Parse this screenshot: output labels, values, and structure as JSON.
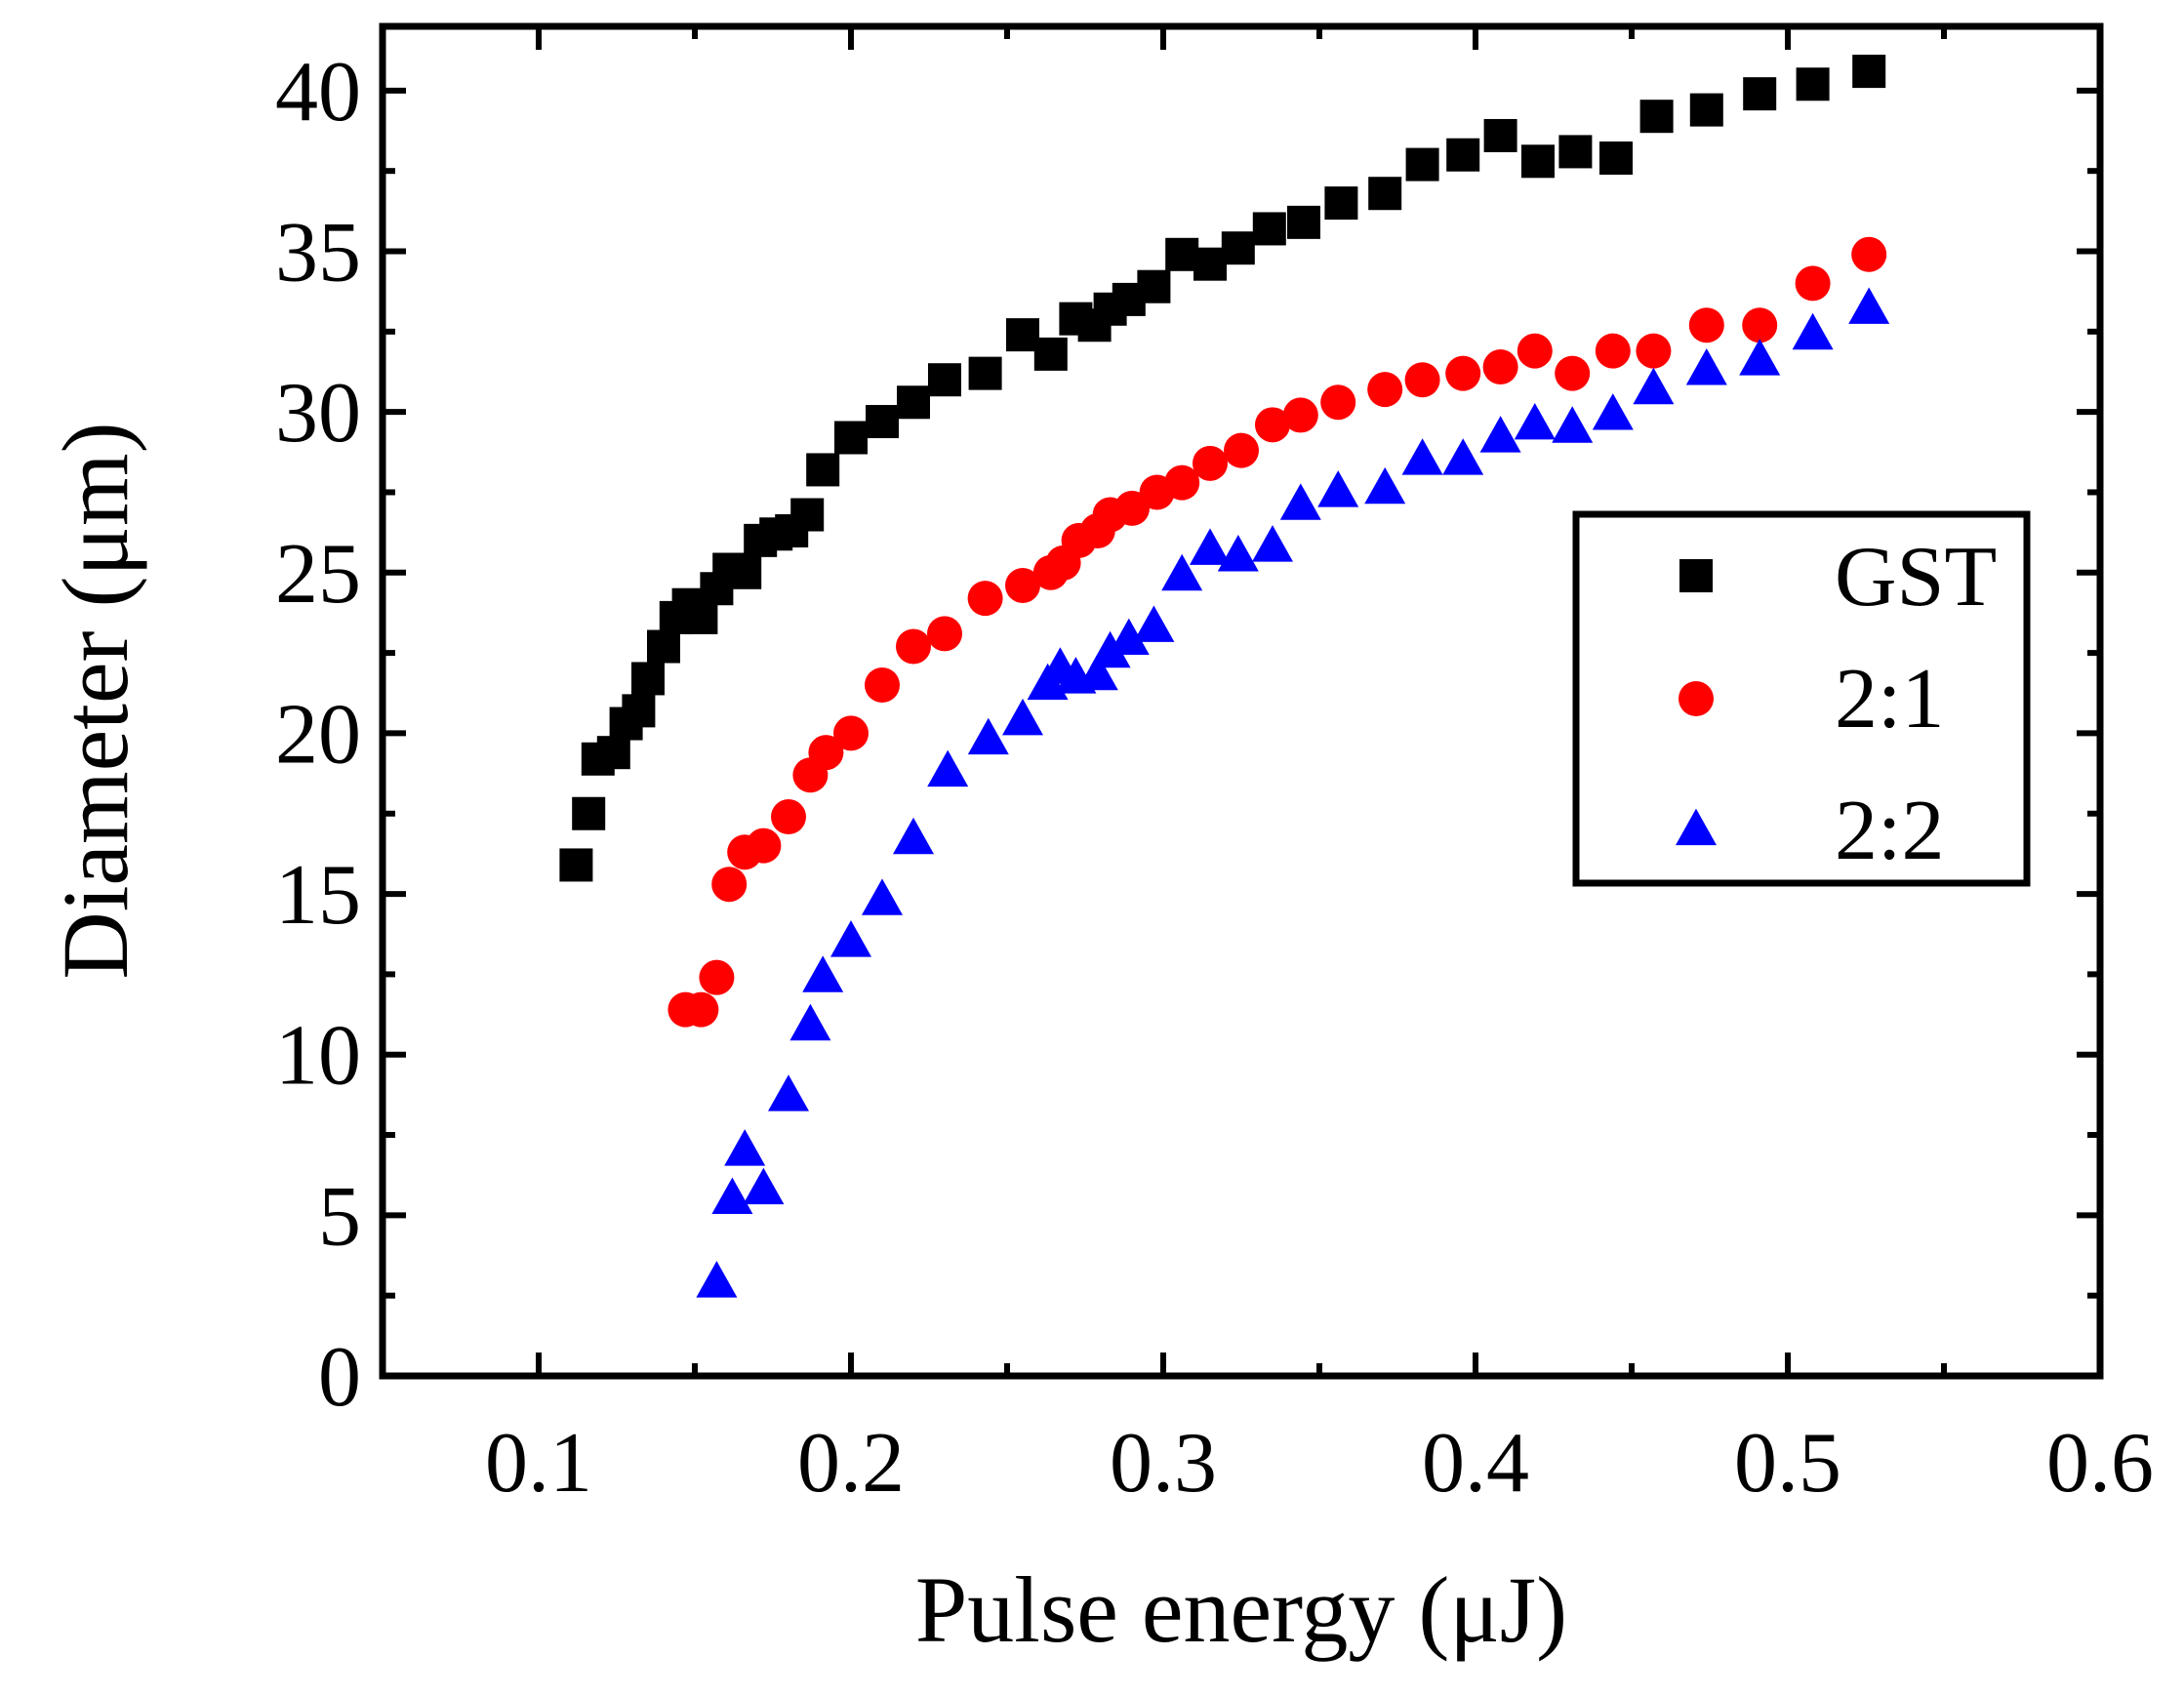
{
  "chart_data": {
    "type": "scatter",
    "xlabel": "Pulse energy (μJ)",
    "ylabel": "Diameter (μm)",
    "xlim": [
      0.05,
      0.6
    ],
    "ylim": [
      0,
      42
    ],
    "xticks": [
      0.1,
      0.2,
      0.3,
      0.4,
      0.5,
      0.6
    ],
    "xtick_labels": [
      "0.1",
      "0.2",
      "0.3",
      "0.4",
      "0.5",
      "0.6"
    ],
    "yticks": [
      0,
      5,
      10,
      15,
      20,
      25,
      30,
      35,
      40
    ],
    "ytick_labels": [
      "0",
      "5",
      "10",
      "15",
      "20",
      "25",
      "30",
      "35",
      "40"
    ],
    "grid": false,
    "legend_position": "right",
    "series": [
      {
        "name": "GST",
        "marker": "square",
        "color": "#000000",
        "points": [
          [
            0.112,
            15.9
          ],
          [
            0.116,
            17.5
          ],
          [
            0.119,
            19.2
          ],
          [
            0.124,
            19.4
          ],
          [
            0.128,
            20.3
          ],
          [
            0.132,
            20.7
          ],
          [
            0.135,
            21.7
          ],
          [
            0.14,
            22.7
          ],
          [
            0.144,
            23.6
          ],
          [
            0.148,
            24.0
          ],
          [
            0.152,
            23.6
          ],
          [
            0.157,
            24.5
          ],
          [
            0.161,
            25.1
          ],
          [
            0.166,
            25.0
          ],
          [
            0.171,
            26.0
          ],
          [
            0.176,
            26.2
          ],
          [
            0.181,
            26.3
          ],
          [
            0.186,
            26.8
          ],
          [
            0.191,
            28.2
          ],
          [
            0.2,
            29.2
          ],
          [
            0.21,
            29.7
          ],
          [
            0.22,
            30.3
          ],
          [
            0.23,
            31.0
          ],
          [
            0.243,
            31.2
          ],
          [
            0.255,
            32.4
          ],
          [
            0.264,
            31.8
          ],
          [
            0.272,
            32.9
          ],
          [
            0.278,
            32.7
          ],
          [
            0.283,
            33.2
          ],
          [
            0.289,
            33.5
          ],
          [
            0.297,
            33.9
          ],
          [
            0.306,
            34.9
          ],
          [
            0.315,
            34.6
          ],
          [
            0.324,
            35.1
          ],
          [
            0.334,
            35.7
          ],
          [
            0.345,
            35.9
          ],
          [
            0.357,
            36.5
          ],
          [
            0.371,
            36.8
          ],
          [
            0.383,
            37.7
          ],
          [
            0.396,
            38.0
          ],
          [
            0.408,
            38.6
          ],
          [
            0.42,
            37.8
          ],
          [
            0.432,
            38.1
          ],
          [
            0.445,
            37.9
          ],
          [
            0.458,
            39.2
          ],
          [
            0.474,
            39.4
          ],
          [
            0.491,
            39.9
          ],
          [
            0.508,
            40.2
          ],
          [
            0.526,
            40.6
          ]
        ]
      },
      {
        "name": "2:1",
        "marker": "circle",
        "color": "#ff0000",
        "points": [
          [
            0.147,
            11.4
          ],
          [
            0.152,
            11.4
          ],
          [
            0.157,
            12.4
          ],
          [
            0.161,
            15.3
          ],
          [
            0.166,
            16.3
          ],
          [
            0.172,
            16.5
          ],
          [
            0.18,
            17.4
          ],
          [
            0.187,
            18.7
          ],
          [
            0.192,
            19.4
          ],
          [
            0.2,
            20.0
          ],
          [
            0.21,
            21.5
          ],
          [
            0.22,
            22.7
          ],
          [
            0.23,
            23.1
          ],
          [
            0.243,
            24.2
          ],
          [
            0.255,
            24.6
          ],
          [
            0.264,
            25.0
          ],
          [
            0.268,
            25.3
          ],
          [
            0.273,
            26.0
          ],
          [
            0.279,
            26.3
          ],
          [
            0.283,
            26.8
          ],
          [
            0.29,
            27.0
          ],
          [
            0.298,
            27.5
          ],
          [
            0.306,
            27.8
          ],
          [
            0.315,
            28.4
          ],
          [
            0.325,
            28.8
          ],
          [
            0.335,
            29.6
          ],
          [
            0.344,
            29.9
          ],
          [
            0.356,
            30.3
          ],
          [
            0.371,
            30.7
          ],
          [
            0.383,
            31.0
          ],
          [
            0.396,
            31.2
          ],
          [
            0.408,
            31.4
          ],
          [
            0.419,
            31.9
          ],
          [
            0.431,
            31.2
          ],
          [
            0.444,
            31.9
          ],
          [
            0.457,
            31.9
          ],
          [
            0.474,
            32.7
          ],
          [
            0.491,
            32.7
          ],
          [
            0.508,
            34.0
          ],
          [
            0.526,
            34.9
          ]
        ]
      },
      {
        "name": "2:2",
        "marker": "triangle",
        "color": "#0000ff",
        "points": [
          [
            0.157,
            2.9
          ],
          [
            0.162,
            5.5
          ],
          [
            0.166,
            7.0
          ],
          [
            0.172,
            5.8
          ],
          [
            0.18,
            8.7
          ],
          [
            0.187,
            10.9
          ],
          [
            0.191,
            12.4
          ],
          [
            0.2,
            13.5
          ],
          [
            0.21,
            14.8
          ],
          [
            0.22,
            16.7
          ],
          [
            0.231,
            18.8
          ],
          [
            0.244,
            19.8
          ],
          [
            0.255,
            20.4
          ],
          [
            0.263,
            21.5
          ],
          [
            0.267,
            22.0
          ],
          [
            0.272,
            21.7
          ],
          [
            0.279,
            21.8
          ],
          [
            0.283,
            22.5
          ],
          [
            0.289,
            22.9
          ],
          [
            0.297,
            23.3
          ],
          [
            0.306,
            24.9
          ],
          [
            0.315,
            25.7
          ],
          [
            0.324,
            25.5
          ],
          [
            0.335,
            25.8
          ],
          [
            0.344,
            27.1
          ],
          [
            0.356,
            27.5
          ],
          [
            0.371,
            27.6
          ],
          [
            0.383,
            28.5
          ],
          [
            0.396,
            28.5
          ],
          [
            0.408,
            29.2
          ],
          [
            0.419,
            29.6
          ],
          [
            0.431,
            29.5
          ],
          [
            0.444,
            29.9
          ],
          [
            0.457,
            30.7
          ],
          [
            0.474,
            31.3
          ],
          [
            0.491,
            31.6
          ],
          [
            0.508,
            32.4
          ],
          [
            0.526,
            33.2
          ]
        ]
      }
    ]
  }
}
